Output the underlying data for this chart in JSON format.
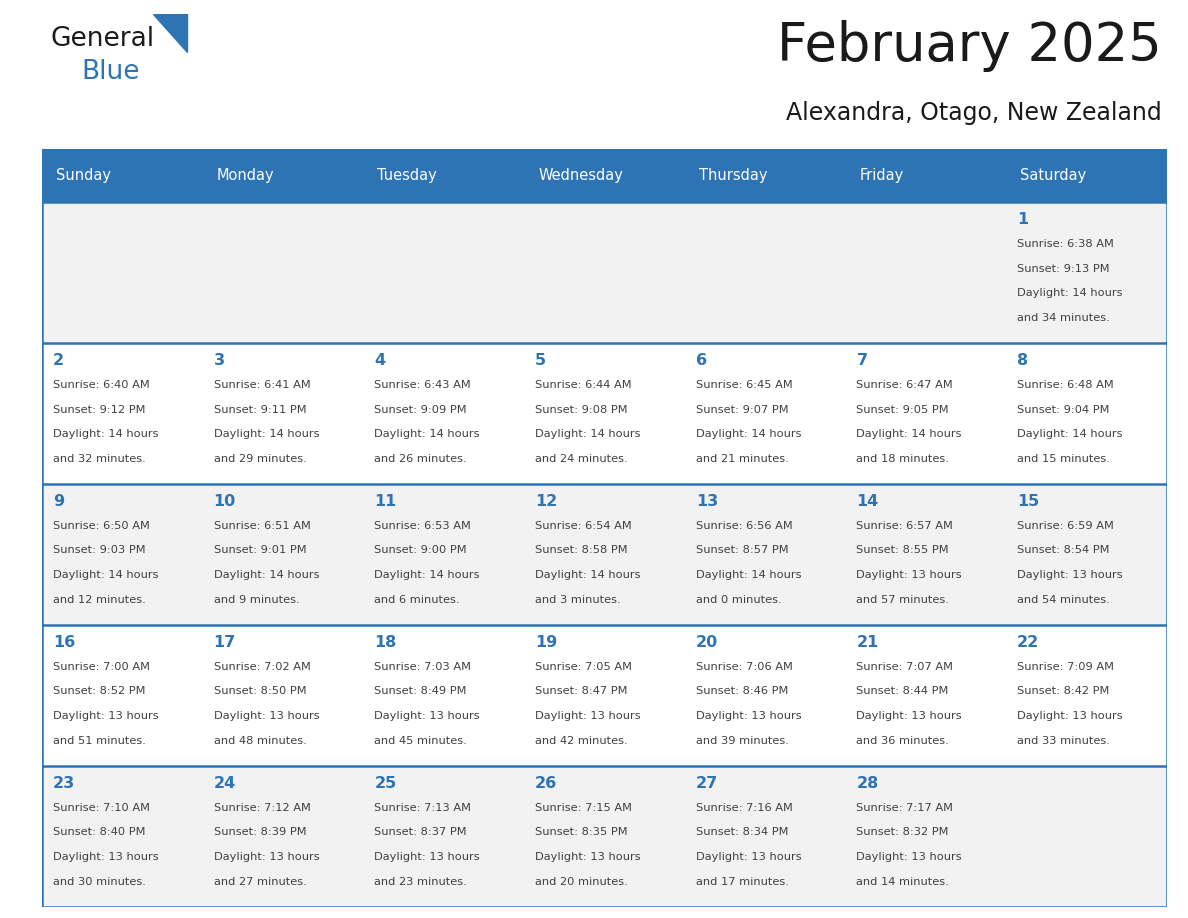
{
  "title": "February 2025",
  "subtitle": "Alexandra, Otago, New Zealand",
  "days_of_week": [
    "Sunday",
    "Monday",
    "Tuesday",
    "Wednesday",
    "Thursday",
    "Friday",
    "Saturday"
  ],
  "header_bg": "#2E74B5",
  "header_text": "#FFFFFF",
  "cell_bg_odd": "#F2F2F2",
  "cell_bg_even": "#FFFFFF",
  "border_color": "#2E74B5",
  "day_number_color": "#2E74B5",
  "text_color": "#404040",
  "title_color": "#1a1a1a",
  "subtitle_color": "#1a1a1a",
  "logo_general_color": "#1a1a1a",
  "logo_blue_color": "#2E74B5",
  "logo_triangle_color": "#2E74B5",
  "calendar_data": [
    [
      {
        "day": null,
        "sunrise": null,
        "sunset": null,
        "daylight_line1": null,
        "daylight_line2": null
      },
      {
        "day": null,
        "sunrise": null,
        "sunset": null,
        "daylight_line1": null,
        "daylight_line2": null
      },
      {
        "day": null,
        "sunrise": null,
        "sunset": null,
        "daylight_line1": null,
        "daylight_line2": null
      },
      {
        "day": null,
        "sunrise": null,
        "sunset": null,
        "daylight_line1": null,
        "daylight_line2": null
      },
      {
        "day": null,
        "sunrise": null,
        "sunset": null,
        "daylight_line1": null,
        "daylight_line2": null
      },
      {
        "day": null,
        "sunrise": null,
        "sunset": null,
        "daylight_line1": null,
        "daylight_line2": null
      },
      {
        "day": 1,
        "sunrise": "Sunrise: 6:38 AM",
        "sunset": "Sunset: 9:13 PM",
        "daylight_line1": "Daylight: 14 hours",
        "daylight_line2": "and 34 minutes."
      }
    ],
    [
      {
        "day": 2,
        "sunrise": "Sunrise: 6:40 AM",
        "sunset": "Sunset: 9:12 PM",
        "daylight_line1": "Daylight: 14 hours",
        "daylight_line2": "and 32 minutes."
      },
      {
        "day": 3,
        "sunrise": "Sunrise: 6:41 AM",
        "sunset": "Sunset: 9:11 PM",
        "daylight_line1": "Daylight: 14 hours",
        "daylight_line2": "and 29 minutes."
      },
      {
        "day": 4,
        "sunrise": "Sunrise: 6:43 AM",
        "sunset": "Sunset: 9:09 PM",
        "daylight_line1": "Daylight: 14 hours",
        "daylight_line2": "and 26 minutes."
      },
      {
        "day": 5,
        "sunrise": "Sunrise: 6:44 AM",
        "sunset": "Sunset: 9:08 PM",
        "daylight_line1": "Daylight: 14 hours",
        "daylight_line2": "and 24 minutes."
      },
      {
        "day": 6,
        "sunrise": "Sunrise: 6:45 AM",
        "sunset": "Sunset: 9:07 PM",
        "daylight_line1": "Daylight: 14 hours",
        "daylight_line2": "and 21 minutes."
      },
      {
        "day": 7,
        "sunrise": "Sunrise: 6:47 AM",
        "sunset": "Sunset: 9:05 PM",
        "daylight_line1": "Daylight: 14 hours",
        "daylight_line2": "and 18 minutes."
      },
      {
        "day": 8,
        "sunrise": "Sunrise: 6:48 AM",
        "sunset": "Sunset: 9:04 PM",
        "daylight_line1": "Daylight: 14 hours",
        "daylight_line2": "and 15 minutes."
      }
    ],
    [
      {
        "day": 9,
        "sunrise": "Sunrise: 6:50 AM",
        "sunset": "Sunset: 9:03 PM",
        "daylight_line1": "Daylight: 14 hours",
        "daylight_line2": "and 12 minutes."
      },
      {
        "day": 10,
        "sunrise": "Sunrise: 6:51 AM",
        "sunset": "Sunset: 9:01 PM",
        "daylight_line1": "Daylight: 14 hours",
        "daylight_line2": "and 9 minutes."
      },
      {
        "day": 11,
        "sunrise": "Sunrise: 6:53 AM",
        "sunset": "Sunset: 9:00 PM",
        "daylight_line1": "Daylight: 14 hours",
        "daylight_line2": "and 6 minutes."
      },
      {
        "day": 12,
        "sunrise": "Sunrise: 6:54 AM",
        "sunset": "Sunset: 8:58 PM",
        "daylight_line1": "Daylight: 14 hours",
        "daylight_line2": "and 3 minutes."
      },
      {
        "day": 13,
        "sunrise": "Sunrise: 6:56 AM",
        "sunset": "Sunset: 8:57 PM",
        "daylight_line1": "Daylight: 14 hours",
        "daylight_line2": "and 0 minutes."
      },
      {
        "day": 14,
        "sunrise": "Sunrise: 6:57 AM",
        "sunset": "Sunset: 8:55 PM",
        "daylight_line1": "Daylight: 13 hours",
        "daylight_line2": "and 57 minutes."
      },
      {
        "day": 15,
        "sunrise": "Sunrise: 6:59 AM",
        "sunset": "Sunset: 8:54 PM",
        "daylight_line1": "Daylight: 13 hours",
        "daylight_line2": "and 54 minutes."
      }
    ],
    [
      {
        "day": 16,
        "sunrise": "Sunrise: 7:00 AM",
        "sunset": "Sunset: 8:52 PM",
        "daylight_line1": "Daylight: 13 hours",
        "daylight_line2": "and 51 minutes."
      },
      {
        "day": 17,
        "sunrise": "Sunrise: 7:02 AM",
        "sunset": "Sunset: 8:50 PM",
        "daylight_line1": "Daylight: 13 hours",
        "daylight_line2": "and 48 minutes."
      },
      {
        "day": 18,
        "sunrise": "Sunrise: 7:03 AM",
        "sunset": "Sunset: 8:49 PM",
        "daylight_line1": "Daylight: 13 hours",
        "daylight_line2": "and 45 minutes."
      },
      {
        "day": 19,
        "sunrise": "Sunrise: 7:05 AM",
        "sunset": "Sunset: 8:47 PM",
        "daylight_line1": "Daylight: 13 hours",
        "daylight_line2": "and 42 minutes."
      },
      {
        "day": 20,
        "sunrise": "Sunrise: 7:06 AM",
        "sunset": "Sunset: 8:46 PM",
        "daylight_line1": "Daylight: 13 hours",
        "daylight_line2": "and 39 minutes."
      },
      {
        "day": 21,
        "sunrise": "Sunrise: 7:07 AM",
        "sunset": "Sunset: 8:44 PM",
        "daylight_line1": "Daylight: 13 hours",
        "daylight_line2": "and 36 minutes."
      },
      {
        "day": 22,
        "sunrise": "Sunrise: 7:09 AM",
        "sunset": "Sunset: 8:42 PM",
        "daylight_line1": "Daylight: 13 hours",
        "daylight_line2": "and 33 minutes."
      }
    ],
    [
      {
        "day": 23,
        "sunrise": "Sunrise: 7:10 AM",
        "sunset": "Sunset: 8:40 PM",
        "daylight_line1": "Daylight: 13 hours",
        "daylight_line2": "and 30 minutes."
      },
      {
        "day": 24,
        "sunrise": "Sunrise: 7:12 AM",
        "sunset": "Sunset: 8:39 PM",
        "daylight_line1": "Daylight: 13 hours",
        "daylight_line2": "and 27 minutes."
      },
      {
        "day": 25,
        "sunrise": "Sunrise: 7:13 AM",
        "sunset": "Sunset: 8:37 PM",
        "daylight_line1": "Daylight: 13 hours",
        "daylight_line2": "and 23 minutes."
      },
      {
        "day": 26,
        "sunrise": "Sunrise: 7:15 AM",
        "sunset": "Sunset: 8:35 PM",
        "daylight_line1": "Daylight: 13 hours",
        "daylight_line2": "and 20 minutes."
      },
      {
        "day": 27,
        "sunrise": "Sunrise: 7:16 AM",
        "sunset": "Sunset: 8:34 PM",
        "daylight_line1": "Daylight: 13 hours",
        "daylight_line2": "and 17 minutes."
      },
      {
        "day": 28,
        "sunrise": "Sunrise: 7:17 AM",
        "sunset": "Sunset: 8:32 PM",
        "daylight_line1": "Daylight: 13 hours",
        "daylight_line2": "and 14 minutes."
      },
      {
        "day": null,
        "sunrise": null,
        "sunset": null,
        "daylight_line1": null,
        "daylight_line2": null
      }
    ]
  ]
}
